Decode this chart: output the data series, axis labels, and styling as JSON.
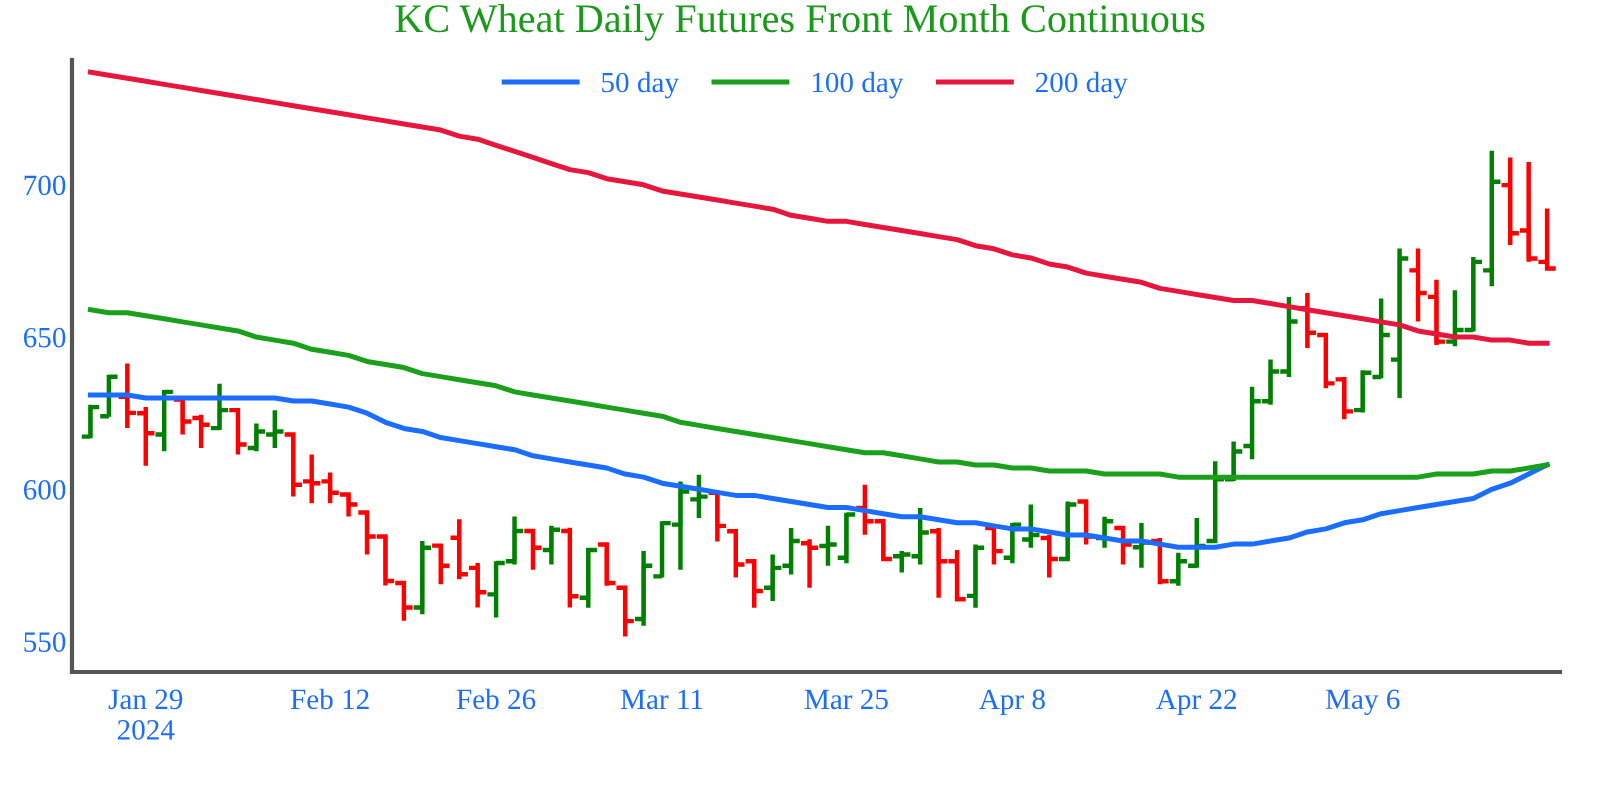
{
  "chart_data": {
    "type": "candlestick",
    "title": "KC Wheat Daily Futures Front Month Continuous",
    "categories": [
      null,
      null,
      null,
      "Jan 29\n2024",
      null,
      null,
      null,
      null,
      null,
      null,
      null,
      null,
      null,
      "Feb 12",
      null,
      null,
      null,
      null,
      null,
      null,
      null,
      null,
      "Feb 26",
      null,
      null,
      null,
      null,
      null,
      null,
      null,
      null,
      "Mar 11",
      null,
      null,
      null,
      null,
      null,
      null,
      null,
      null,
      null,
      "Mar 25",
      null,
      null,
      null,
      null,
      null,
      null,
      null,
      null,
      "Apr 8",
      null,
      null,
      null,
      null,
      null,
      null,
      null,
      null,
      null,
      "Apr 22",
      null,
      null,
      null,
      null,
      null,
      null,
      null,
      null,
      "May 6",
      null,
      null,
      null,
      null,
      null,
      null,
      null,
      null,
      null,
      null
    ],
    "ohlc": [
      [
        617.3,
        627.8,
        616.8,
        627
      ],
      [
        624,
        637.6,
        623.8,
        637
      ],
      [
        630.4,
        641.3,
        620.1,
        625.1
      ],
      [
        625,
        627,
        607.7,
        618.4
      ],
      [
        618,
        632.6,
        612.5,
        632
      ],
      [
        629.5,
        630.4,
        618,
        622.3
      ],
      [
        623.4,
        624.5,
        613.6,
        621.2
      ],
      [
        620.1,
        634.7,
        619.5,
        626
      ],
      [
        626,
        626.7,
        611.4,
        614.7
      ],
      [
        613.6,
        621.6,
        612.5,
        619
      ],
      [
        618,
        626,
        613.6,
        619
      ],
      [
        618,
        618.6,
        597.6,
        601.5
      ],
      [
        602.6,
        611.4,
        595.4,
        602
      ],
      [
        602.6,
        605.5,
        595.4,
        598.9
      ],
      [
        598.3,
        598.9,
        591.1,
        595
      ],
      [
        592.4,
        592.8,
        578.6,
        584.5
      ],
      [
        584.5,
        585,
        568.4,
        569.9
      ],
      [
        569.2,
        569.9,
        556.8,
        561.2
      ],
      [
        561.2,
        583,
        559,
        580.8
      ],
      [
        581.5,
        581.9,
        568.8,
        574.9
      ],
      [
        584.1,
        590.2,
        570.5,
        572.1
      ],
      [
        574.2,
        575.8,
        561.2,
        566.2
      ],
      [
        565.5,
        576.4,
        557.9,
        575.8
      ],
      [
        576.4,
        591.1,
        575.3,
        586.3
      ],
      [
        586.3,
        586.7,
        573.6,
        580.8
      ],
      [
        580.1,
        588,
        575.3,
        586.7
      ],
      [
        586.3,
        587.4,
        561.2,
        564.9
      ],
      [
        564.4,
        580.8,
        561.1,
        580.1
      ],
      [
        581.9,
        582.3,
        568.3,
        569.2
      ],
      [
        567.7,
        568.3,
        551.7,
        556.7
      ],
      [
        557.4,
        579.7,
        555.2,
        574.9
      ],
      [
        571.4,
        589.5,
        571,
        588.9
      ],
      [
        588.4,
        602.6,
        573.6,
        599.3
      ],
      [
        596.7,
        604.8,
        590.6,
        597.6
      ],
      [
        598.9,
        599.3,
        582.9,
        588
      ],
      [
        586.2,
        586.7,
        571,
        575.3
      ],
      [
        576.4,
        577.1,
        561.1,
        566.6
      ],
      [
        567.7,
        578.6,
        563.3,
        574.2
      ],
      [
        574.9,
        587.3,
        572,
        583
      ],
      [
        582.3,
        583.6,
        567.7,
        580.8
      ],
      [
        581.4,
        588,
        574.9,
        581.9
      ],
      [
        577.5,
        592.3,
        575.7,
        591.7
      ],
      [
        593.9,
        601.5,
        585.1,
        589.5
      ],
      [
        589.5,
        590.2,
        576.4,
        577.1
      ],
      [
        578,
        579.7,
        572.7,
        578.6
      ],
      [
        578,
        593.9,
        575.3,
        585.8
      ],
      [
        586.2,
        587.3,
        564.4,
        576.4
      ],
      [
        576.4,
        580.1,
        563.3,
        563.9
      ],
      [
        565,
        581.9,
        561.1,
        580.8
      ],
      [
        587.3,
        588.4,
        575.3,
        579.7
      ],
      [
        577.5,
        588.9,
        575.7,
        588.4
      ],
      [
        583.5,
        595,
        580.8,
        585
      ],
      [
        584,
        585.1,
        571,
        577.1
      ],
      [
        577.1,
        596,
        576.4,
        595
      ],
      [
        596,
        596.7,
        581.9,
        584.5
      ],
      [
        584,
        591,
        580.8,
        589.5
      ],
      [
        587.3,
        588,
        575.3,
        581.9
      ],
      [
        581,
        588.9,
        574.2,
        582.5
      ],
      [
        583,
        584,
        568.8,
        569.8
      ],
      [
        569.8,
        579.2,
        568.3,
        576.4
      ],
      [
        574.9,
        590.6,
        574.2,
        581.4
      ],
      [
        583,
        609.2,
        582.3,
        603.3
      ],
      [
        603.3,
        615.7,
        602.7,
        612.4
      ],
      [
        614.2,
        633.7,
        609.9,
        628.9
      ],
      [
        628.9,
        642.6,
        627.8,
        638.7
      ],
      [
        638.7,
        663.2,
        636.9,
        655.1
      ],
      [
        659.5,
        664.5,
        646.4,
        651.4
      ],
      [
        650.7,
        651.4,
        633.2,
        634.8
      ],
      [
        636.1,
        636.9,
        623,
        625.6
      ],
      [
        626,
        639.1,
        625.2,
        638.3
      ],
      [
        636.9,
        662.7,
        636.5,
        650.7
      ],
      [
        642.6,
        679.1,
        630,
        675.8
      ],
      [
        671.9,
        679.1,
        655.1,
        664.5
      ],
      [
        663.2,
        668.8,
        647.4,
        648.5
      ],
      [
        648.5,
        665.4,
        647,
        652.3
      ],
      [
        652.3,
        676.3,
        651.8,
        674.7
      ],
      [
        671.9,
        711.2,
        666.7,
        701
      ],
      [
        699.9,
        709,
        680.2,
        684.1
      ],
      [
        685,
        707.5,
        674.7,
        675.8
      ],
      [
        674.7,
        692.2,
        671.9,
        672.5
      ]
    ],
    "colors": [
      "#008000",
      "#008000",
      "#ff0000",
      "#ff0000",
      "#008000",
      "#ff0000",
      "#ff0000",
      "#008000",
      "#ff0000",
      "#008000",
      "#008000",
      "#ff0000",
      "#ff0000",
      "#ff0000",
      "#ff0000",
      "#ff0000",
      "#ff0000",
      "#ff0000",
      "#008000",
      "#ff0000",
      "#ff0000",
      "#ff0000",
      "#008000",
      "#008000",
      "#ff0000",
      "#008000",
      "#ff0000",
      "#008000",
      "#ff0000",
      "#ff0000",
      "#008000",
      "#008000",
      "#008000",
      "#008000",
      "#ff0000",
      "#ff0000",
      "#ff0000",
      "#008000",
      "#008000",
      "#ff0000",
      "#008000",
      "#008000",
      "#ff0000",
      "#ff0000",
      "#008000",
      "#008000",
      "#ff0000",
      "#ff0000",
      "#008000",
      "#ff0000",
      "#008000",
      "#008000",
      "#ff0000",
      "#008000",
      "#ff0000",
      "#008000",
      "#ff0000",
      "#008000",
      "#ff0000",
      "#008000",
      "#008000",
      "#008000",
      "#008000",
      "#008000",
      "#008000",
      "#008000",
      "#ff0000",
      "#ff0000",
      "#ff0000",
      "#008000",
      "#008000",
      "#008000",
      "#ff0000",
      "#ff0000",
      "#008000",
      "#008000",
      "#008000",
      "#ff0000",
      "#ff0000",
      "#ff0000"
    ],
    "series": [
      {
        "type": "line",
        "name": "50 day",
        "color": "#1a6dff",
        "values": [
          631,
          631,
          631,
          630,
          630,
          630,
          630,
          630,
          630,
          630,
          630,
          629,
          629,
          628,
          627,
          625,
          622,
          620,
          619,
          617,
          616,
          615,
          614,
          613,
          611,
          610,
          609,
          608,
          607,
          605,
          604,
          602,
          601,
          600,
          599,
          598,
          598,
          597,
          596,
          595,
          594,
          594,
          593,
          592,
          591,
          591,
          590,
          589,
          589,
          588,
          587,
          587,
          586,
          585,
          585,
          584,
          583,
          583,
          582,
          581,
          581,
          581,
          582,
          582,
          583,
          584,
          586,
          587,
          589,
          590,
          592,
          593,
          594,
          595,
          596,
          597,
          600,
          602,
          605,
          608
        ]
      },
      {
        "type": "line",
        "name": "100 day",
        "color": "#1aa01a",
        "values": [
          659,
          658,
          658,
          657,
          656,
          655,
          654,
          653,
          652,
          650,
          649,
          648,
          646,
          645,
          644,
          642,
          641,
          640,
          638,
          637,
          636,
          635,
          634,
          632,
          631,
          630,
          629,
          628,
          627,
          626,
          625,
          624,
          622,
          621,
          620,
          619,
          618,
          617,
          616,
          615,
          614,
          613,
          612,
          612,
          611,
          610,
          609,
          609,
          608,
          608,
          607,
          607,
          606,
          606,
          606,
          605,
          605,
          605,
          605,
          604,
          604,
          604,
          604,
          604,
          604,
          604,
          604,
          604,
          604,
          604,
          604,
          604,
          604,
          605,
          605,
          605,
          606,
          606,
          607,
          608
        ]
      },
      {
        "type": "line",
        "name": "200 day",
        "color": "#e8163c",
        "values": [
          737,
          736,
          735,
          734,
          733,
          732,
          731,
          730,
          729,
          728,
          727,
          726,
          725,
          724,
          723,
          722,
          721,
          720,
          719,
          718,
          716,
          715,
          713,
          711,
          709,
          707,
          705,
          704,
          702,
          701,
          700,
          698,
          697,
          696,
          695,
          694,
          693,
          692,
          690,
          689,
          688,
          688,
          687,
          686,
          685,
          684,
          683,
          682,
          680,
          679,
          677,
          676,
          674,
          673,
          671,
          670,
          669,
          668,
          666,
          665,
          664,
          663,
          662,
          662,
          661,
          660,
          659,
          658,
          657,
          656,
          655,
          654,
          652,
          651,
          650,
          650,
          649,
          649,
          648,
          648
        ]
      }
    ],
    "ylim": [
      540,
      741
    ],
    "yticks": [
      550,
      600,
      650,
      700
    ],
    "legend": "top",
    "grid": false
  }
}
